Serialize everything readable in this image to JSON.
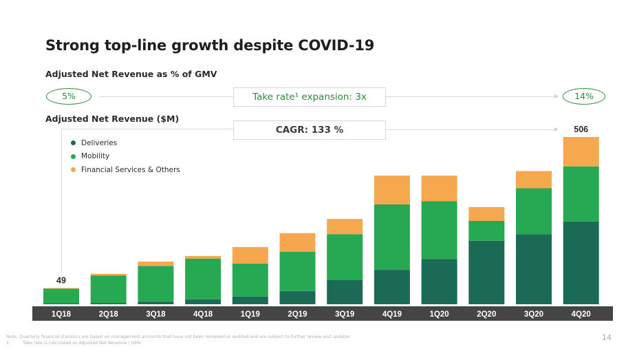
{
  "title": "Strong top-line growth despite COVID-19",
  "take_rate_section": {
    "heading": "Adjusted Net Revenue as % of GMV",
    "start_value": "5%",
    "end_value": "14%",
    "callout": "Take rate¹ expansion: 3x"
  },
  "revenue_section": {
    "heading": "Adjusted Net Revenue ($M)",
    "callout": "CAGR: 133 %"
  },
  "colors": {
    "deliveries": "#1b6a55",
    "mobility": "#27a853",
    "financial_services": "#f5a84e",
    "accent_green": "#2f8a3c",
    "axis_band": "#454545"
  },
  "chart_data": {
    "type": "bar",
    "stacked": true,
    "title": "Adjusted Net Revenue ($M)",
    "xlabel": "",
    "ylabel": "",
    "categories": [
      "1Q18",
      "2Q18",
      "3Q18",
      "4Q18",
      "1Q19",
      "2Q19",
      "3Q19",
      "4Q19",
      "1Q20",
      "2Q20",
      "3Q20",
      "4Q20"
    ],
    "series": [
      {
        "name": "Deliveries",
        "values": [
          2,
          4,
          8,
          15,
          23,
          40,
          73,
          104,
          137,
          192,
          212,
          250
        ]
      },
      {
        "name": "Mobility",
        "values": [
          45,
          83,
          108,
          123,
          100,
          119,
          139,
          198,
          175,
          60,
          139,
          167
        ]
      },
      {
        "name": "Financial Services & Others",
        "values": [
          2,
          5,
          13,
          8,
          50,
          56,
          46,
          87,
          77,
          42,
          52,
          89
        ]
      }
    ],
    "data_labels": [
      {
        "category": "1Q18",
        "text": "49"
      },
      {
        "category": "4Q20",
        "text": "506"
      }
    ],
    "ylim": [
      0,
      506
    ],
    "grid": false,
    "legend": "top-left"
  },
  "footnotes": {
    "note": "Note: Quarterly financial statistics are based on management accounts that have not been reviewed or audited and are subject to further review and updates",
    "item_number": "1.",
    "item_text": "Take rate is calculated as Adjusted Net Revenue / GMV"
  },
  "page_number": "14"
}
